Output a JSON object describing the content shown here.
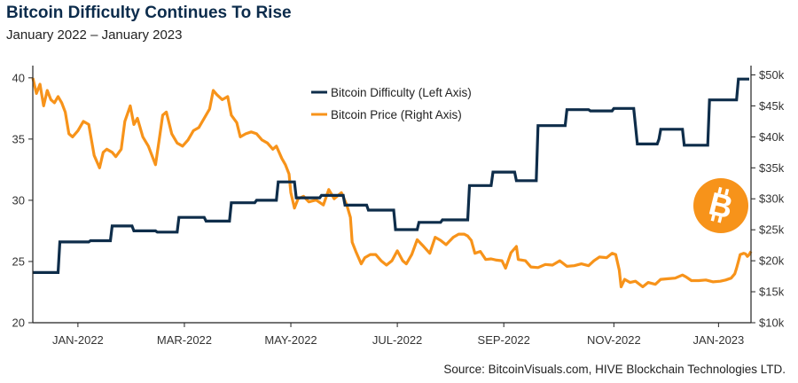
{
  "header": {
    "title": "Bitcoin Difficulty Continues To Rise",
    "subtitle": "January 2022 – January 2023"
  },
  "footer": {
    "source": "Source: BitcoinVisuals.com, HIVE Blockchain Technologies LTD."
  },
  "colors": {
    "difficulty": "#0e2d4a",
    "price": "#f7931a",
    "axis": "#222222",
    "title": "#0c2c4c",
    "logo": "#f7931a"
  },
  "logo_icon": "bitcoin-logo-icon",
  "chart_data": {
    "type": "line",
    "x_axis": {
      "range": [
        "2021-12-18",
        "2023-01-20"
      ],
      "tick_labels": [
        "JAN-2022",
        "MAR-2022",
        "MAY-2022",
        "JUL-2022",
        "SEP-2022",
        "NOV-2022",
        "JAN-2023"
      ],
      "tick_dates": [
        "2022-01-12",
        "2022-03-12",
        "2022-05-10",
        "2022-07-08",
        "2022-09-05",
        "2022-11-05",
        "2023-01-02"
      ]
    },
    "y_left": {
      "range": [
        20,
        41
      ],
      "ticks": [
        20,
        25,
        30,
        35,
        40
      ],
      "tick_labels": [
        "20",
        "25",
        "30",
        "35",
        "40"
      ]
    },
    "y_right": {
      "range": [
        10000,
        51500
      ],
      "ticks": [
        10000,
        15000,
        20000,
        25000,
        30000,
        35000,
        40000,
        45000,
        50000
      ],
      "tick_labels": [
        "$10k",
        "$15k",
        "$20k",
        "$25k",
        "$30k",
        "$35k",
        "$40k",
        "$45k",
        "$50k"
      ]
    },
    "legend": {
      "position": "top-center",
      "entries": [
        "Bitcoin Difficulty (Left Axis)",
        "Bitcoin Price (Right Axis)"
      ]
    },
    "series": [
      {
        "name": "Bitcoin Difficulty (Left Axis)",
        "axis": "left",
        "points": [
          [
            "2021-12-18",
            24.1
          ],
          [
            "2022-01-01",
            24.1
          ],
          [
            "2022-01-02",
            26.6
          ],
          [
            "2022-01-18",
            26.6
          ],
          [
            "2022-01-19",
            26.7
          ],
          [
            "2022-01-30",
            26.7
          ],
          [
            "2022-01-31",
            27.9
          ],
          [
            "2022-02-11",
            27.9
          ],
          [
            "2022-02-12",
            27.5
          ],
          [
            "2022-02-24",
            27.5
          ],
          [
            "2022-02-25",
            27.4
          ],
          [
            "2022-03-08",
            27.4
          ],
          [
            "2022-03-09",
            28.6
          ],
          [
            "2022-03-23",
            28.6
          ],
          [
            "2022-03-24",
            28.3
          ],
          [
            "2022-04-06",
            28.3
          ],
          [
            "2022-04-07",
            29.8
          ],
          [
            "2022-04-20",
            29.8
          ],
          [
            "2022-04-21",
            30.0
          ],
          [
            "2022-05-02",
            30.0
          ],
          [
            "2022-05-03",
            31.5
          ],
          [
            "2022-05-12",
            31.5
          ],
          [
            "2022-05-13",
            30.2
          ],
          [
            "2022-05-26",
            30.2
          ],
          [
            "2022-05-27",
            30.4
          ],
          [
            "2022-06-08",
            30.4
          ],
          [
            "2022-06-09",
            29.6
          ],
          [
            "2022-06-21",
            29.6
          ],
          [
            "2022-06-22",
            29.2
          ],
          [
            "2022-07-06",
            29.2
          ],
          [
            "2022-07-07",
            27.6
          ],
          [
            "2022-07-19",
            27.6
          ],
          [
            "2022-07-20",
            28.2
          ],
          [
            "2022-08-01",
            28.2
          ],
          [
            "2022-08-02",
            28.4
          ],
          [
            "2022-08-16",
            28.4
          ],
          [
            "2022-08-17",
            31.2
          ],
          [
            "2022-08-29",
            31.2
          ],
          [
            "2022-08-30",
            32.3
          ],
          [
            "2022-09-11",
            32.3
          ],
          [
            "2022-09-12",
            31.6
          ],
          [
            "2022-09-23",
            31.6
          ],
          [
            "2022-09-24",
            36.1
          ],
          [
            "2022-10-09",
            36.1
          ],
          [
            "2022-10-10",
            37.4
          ],
          [
            "2022-10-22",
            37.4
          ],
          [
            "2022-10-23",
            37.3
          ],
          [
            "2022-11-04",
            37.3
          ],
          [
            "2022-11-05",
            37.5
          ],
          [
            "2022-11-16",
            37.5
          ],
          [
            "2022-11-17",
            36.1
          ],
          [
            "2022-11-18",
            34.6
          ],
          [
            "2022-11-29",
            34.6
          ],
          [
            "2022-11-30",
            35.0
          ],
          [
            "2022-12-01",
            35.8
          ],
          [
            "2022-12-13",
            35.8
          ],
          [
            "2022-12-14",
            34.5
          ],
          [
            "2022-12-27",
            34.5
          ],
          [
            "2022-12-28",
            38.2
          ],
          [
            "2023-01-12",
            38.2
          ],
          [
            "2023-01-13",
            39.9
          ],
          [
            "2023-01-19",
            39.9
          ]
        ]
      },
      {
        "name": "Bitcoin Price (Right Axis)",
        "axis": "right",
        "points": [
          [
            "2021-12-18",
            49500
          ],
          [
            "2021-12-20",
            47000
          ],
          [
            "2021-12-22",
            48500
          ],
          [
            "2021-12-24",
            45000
          ],
          [
            "2021-12-26",
            47500
          ],
          [
            "2021-12-28",
            46000
          ],
          [
            "2021-12-30",
            45500
          ],
          [
            "2022-01-01",
            46500
          ],
          [
            "2022-01-03",
            45500
          ],
          [
            "2022-01-05",
            44000
          ],
          [
            "2022-01-07",
            40500
          ],
          [
            "2022-01-09",
            40000
          ],
          [
            "2022-01-12",
            41000
          ],
          [
            "2022-01-15",
            42500
          ],
          [
            "2022-01-18",
            42000
          ],
          [
            "2022-01-21",
            37000
          ],
          [
            "2022-01-24",
            35000
          ],
          [
            "2022-01-26",
            37500
          ],
          [
            "2022-01-28",
            38000
          ],
          [
            "2022-01-31",
            37500
          ],
          [
            "2022-02-02",
            36800
          ],
          [
            "2022-02-05",
            38000
          ],
          [
            "2022-02-07",
            42500
          ],
          [
            "2022-02-10",
            45000
          ],
          [
            "2022-02-12",
            42000
          ],
          [
            "2022-02-14",
            43000
          ],
          [
            "2022-02-17",
            40000
          ],
          [
            "2022-02-20",
            38500
          ],
          [
            "2022-02-24",
            35500
          ],
          [
            "2022-02-26",
            39500
          ],
          [
            "2022-02-28",
            43500
          ],
          [
            "2022-03-02",
            44000
          ],
          [
            "2022-03-05",
            40500
          ],
          [
            "2022-03-08",
            39000
          ],
          [
            "2022-03-11",
            38500
          ],
          [
            "2022-03-14",
            39500
          ],
          [
            "2022-03-17",
            41000
          ],
          [
            "2022-03-20",
            41500
          ],
          [
            "2022-03-23",
            43000
          ],
          [
            "2022-03-26",
            44500
          ],
          [
            "2022-03-28",
            47500
          ],
          [
            "2022-03-30",
            46800
          ],
          [
            "2022-04-02",
            46000
          ],
          [
            "2022-04-05",
            46500
          ],
          [
            "2022-04-07",
            43500
          ],
          [
            "2022-04-10",
            42300
          ],
          [
            "2022-04-12",
            40000
          ],
          [
            "2022-04-15",
            40500
          ],
          [
            "2022-04-18",
            40800
          ],
          [
            "2022-04-21",
            40500
          ],
          [
            "2022-04-24",
            39500
          ],
          [
            "2022-04-27",
            39000
          ],
          [
            "2022-04-30",
            38000
          ],
          [
            "2022-05-02",
            38500
          ],
          [
            "2022-05-05",
            36500
          ],
          [
            "2022-05-07",
            35500
          ],
          [
            "2022-05-09",
            34000
          ],
          [
            "2022-05-10",
            31000
          ],
          [
            "2022-05-12",
            28500
          ],
          [
            "2022-05-14",
            30000
          ],
          [
            "2022-05-17",
            30400
          ],
          [
            "2022-05-20",
            29500
          ],
          [
            "2022-05-24",
            29800
          ],
          [
            "2022-05-28",
            29000
          ],
          [
            "2022-05-31",
            31500
          ],
          [
            "2022-06-03",
            30000
          ],
          [
            "2022-06-07",
            31000
          ],
          [
            "2022-06-10",
            29000
          ],
          [
            "2022-06-12",
            27000
          ],
          [
            "2022-06-13",
            23000
          ],
          [
            "2022-06-15",
            21500
          ],
          [
            "2022-06-18",
            19500
          ],
          [
            "2022-06-20",
            20500
          ],
          [
            "2022-06-23",
            21000
          ],
          [
            "2022-06-26",
            21000
          ],
          [
            "2022-06-29",
            20000
          ],
          [
            "2022-07-02",
            19300
          ],
          [
            "2022-07-05",
            20000
          ],
          [
            "2022-07-08",
            21600
          ],
          [
            "2022-07-11",
            20000
          ],
          [
            "2022-07-13",
            19500
          ],
          [
            "2022-07-16",
            21000
          ],
          [
            "2022-07-19",
            23400
          ],
          [
            "2022-07-22",
            22500
          ],
          [
            "2022-07-26",
            21200
          ],
          [
            "2022-07-29",
            23800
          ],
          [
            "2022-08-01",
            23300
          ],
          [
            "2022-08-04",
            22600
          ],
          [
            "2022-08-08",
            23800
          ],
          [
            "2022-08-11",
            24300
          ],
          [
            "2022-08-14",
            24300
          ],
          [
            "2022-08-16",
            24000
          ],
          [
            "2022-08-18",
            23300
          ],
          [
            "2022-08-20",
            21200
          ],
          [
            "2022-08-23",
            21500
          ],
          [
            "2022-08-26",
            20200
          ],
          [
            "2022-08-29",
            20300
          ],
          [
            "2022-09-01",
            20100
          ],
          [
            "2022-09-04",
            20000
          ],
          [
            "2022-09-06",
            18800
          ],
          [
            "2022-09-09",
            21300
          ],
          [
            "2022-09-12",
            22300
          ],
          [
            "2022-09-13",
            20200
          ],
          [
            "2022-09-17",
            20000
          ],
          [
            "2022-09-20",
            19000
          ],
          [
            "2022-09-24",
            18900
          ],
          [
            "2022-09-28",
            19400
          ],
          [
            "2022-10-02",
            19300
          ],
          [
            "2022-10-06",
            20000
          ],
          [
            "2022-10-10",
            19100
          ],
          [
            "2022-10-14",
            19200
          ],
          [
            "2022-10-18",
            19500
          ],
          [
            "2022-10-22",
            19200
          ],
          [
            "2022-10-25",
            20000
          ],
          [
            "2022-10-28",
            20600
          ],
          [
            "2022-11-01",
            20500
          ],
          [
            "2022-11-04",
            21200
          ],
          [
            "2022-11-06",
            21000
          ],
          [
            "2022-11-08",
            18500
          ],
          [
            "2022-11-09",
            15800
          ],
          [
            "2022-11-11",
            17000
          ],
          [
            "2022-11-14",
            16500
          ],
          [
            "2022-11-17",
            16700
          ],
          [
            "2022-11-21",
            15800
          ],
          [
            "2022-11-24",
            16500
          ],
          [
            "2022-11-28",
            16200
          ],
          [
            "2022-12-01",
            17000
          ],
          [
            "2022-12-05",
            17100
          ],
          [
            "2022-12-09",
            17200
          ],
          [
            "2022-12-13",
            17700
          ],
          [
            "2022-12-15",
            17400
          ],
          [
            "2022-12-18",
            16800
          ],
          [
            "2022-12-22",
            16800
          ],
          [
            "2022-12-26",
            16900
          ],
          [
            "2022-12-30",
            16600
          ],
          [
            "2023-01-03",
            16700
          ],
          [
            "2023-01-06",
            16900
          ],
          [
            "2023-01-09",
            17200
          ],
          [
            "2023-01-11",
            17900
          ],
          [
            "2023-01-12",
            18800
          ],
          [
            "2023-01-13",
            19900
          ],
          [
            "2023-01-14",
            21000
          ],
          [
            "2023-01-16",
            21200
          ],
          [
            "2023-01-17",
            21100
          ],
          [
            "2023-01-18",
            20700
          ],
          [
            "2023-01-19",
            21000
          ],
          [
            "2023-01-20",
            21500
          ]
        ]
      }
    ]
  }
}
